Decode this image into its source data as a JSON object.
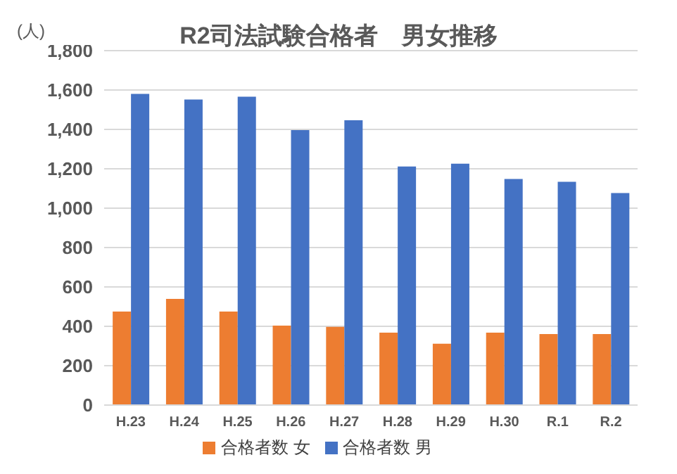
{
  "chart_data": {
    "type": "bar",
    "title": "R2司法試験合格者　男女推移",
    "ylabel": "(人)",
    "categories": [
      "H.23",
      "H.24",
      "H.25",
      "H.26",
      "H.27",
      "H.28",
      "H.29",
      "H.30",
      "R.1",
      "R.2"
    ],
    "series": [
      {
        "name": "合格者数 女",
        "color": "#ed7d31",
        "values": [
          475,
          539,
          475,
          404,
          397,
          368,
          312,
          368,
          361,
          361
        ]
      },
      {
        "name": "合格者数 男",
        "color": "#4472c4",
        "values": [
          1580,
          1552,
          1566,
          1396,
          1446,
          1212,
          1226,
          1148,
          1134,
          1077
        ]
      }
    ],
    "ylim": [
      0,
      1800
    ],
    "yticks": [
      0,
      200,
      400,
      600,
      800,
      {
        "value": 1000,
        "label": "1,000"
      },
      {
        "value": 1200,
        "label": "1,200"
      },
      {
        "value": 1400,
        "label": "1,400"
      },
      {
        "value": 1600,
        "label": "1,600"
      },
      {
        "value": 1800,
        "label": "1,800"
      }
    ],
    "grid": "y",
    "legend": "bottom"
  }
}
